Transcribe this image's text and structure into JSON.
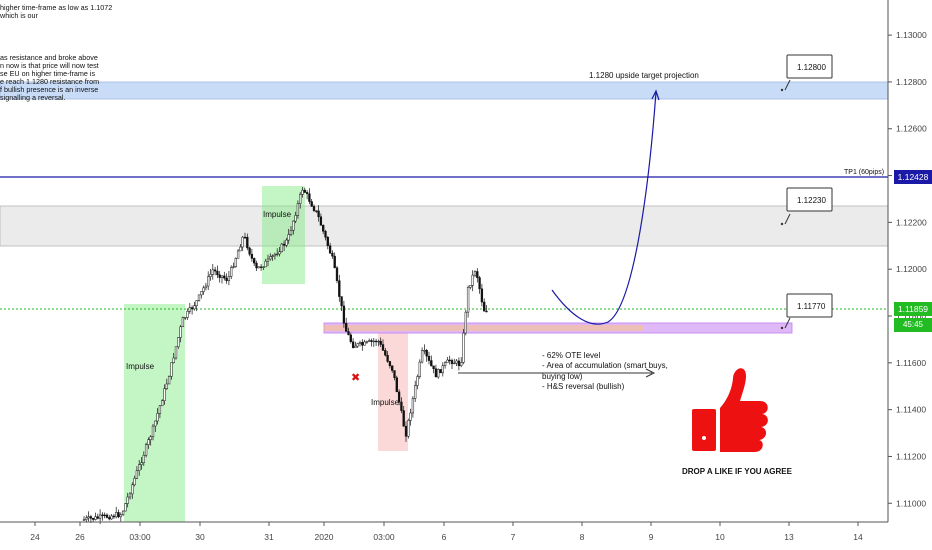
{
  "chart_data": {
    "type": "candlestick",
    "instrument": "EURUSD",
    "ylim": [
      1.1092,
      1.1315
    ],
    "y_ticks": [
      "1.11000",
      "1.11200",
      "1.11400",
      "1.11600",
      "1.11800",
      "1.12000",
      "1.12200",
      "1.12400",
      "1.12600",
      "1.12800",
      "1.13000"
    ],
    "x_ticks": [
      "24",
      "26",
      "03:00",
      "30",
      "31",
      "2020",
      "03:00",
      "6",
      "7",
      "8",
      "9",
      "10",
      "13",
      "14"
    ],
    "grid": false,
    "current_price": "1.11859",
    "countdown": "45:45",
    "tp1_price": "1.12428",
    "tp1_label": "TP1 (60pips)",
    "zones": [
      {
        "name": "resistance-band",
        "from": 1.1214,
        "to": 1.1231
      },
      {
        "name": "target-band",
        "from": 1.1276,
        "to": 1.1285
      },
      {
        "name": "ote-zone",
        "from": 1.1174,
        "to": 1.1178
      }
    ],
    "impulses": [
      {
        "label": "Impulse",
        "direction": "up"
      },
      {
        "label": "Impulse",
        "direction": "up"
      },
      {
        "label": "Impulse",
        "direction": "down"
      }
    ],
    "callouts": [
      "1.12800",
      "1.12230",
      "1.11770"
    ],
    "projection_label": "1.1280 upside target projection",
    "ote_notes": [
      "- 62% OTE level",
      "- Area of accumulation (smart buys,",
      "buying low)",
      "- H&S reversal (bullish)"
    ],
    "like_text": "DROP A LIKE IF YOU AGREE",
    "colors": {
      "tp1_line": "#1a1aa6",
      "price_line": "#22bb22",
      "impulse_up": "#7de87d",
      "impulse_down": "#f4a0a0",
      "target_band": "#c8dcf8",
      "ote_zone": "#d7a8f5",
      "thumb": "#ee1111",
      "candles": "#111111"
    },
    "notes_text": [
      "higher time-frame as low as 1.1072 which is our",
      "as resistance and broke above\nn now is that price will now test\nse EU on higher time-frame is\ne reach 1.1280 resistance from\nf bullish presence is an inverse\nsignalling a reversal."
    ]
  }
}
